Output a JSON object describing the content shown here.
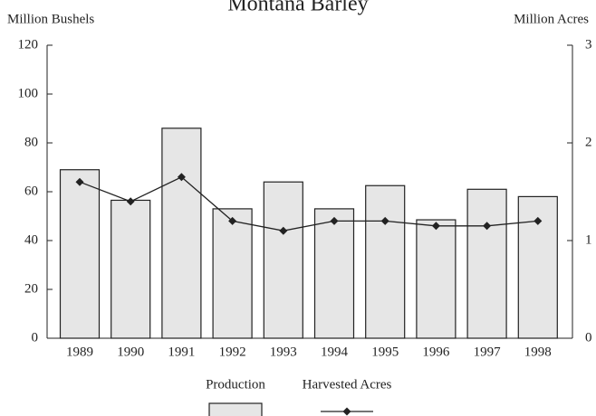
{
  "chart_data": {
    "type": "bar",
    "title": "Montana Barley",
    "y_label": "Million Bushels",
    "y2_label": "Million Acres",
    "categories": [
      "1989",
      "1990",
      "1991",
      "1992",
      "1993",
      "1994",
      "1995",
      "1996",
      "1997",
      "1998"
    ],
    "series": [
      {
        "name": "Production",
        "type": "bar",
        "color": "#e6e6e6",
        "values": [
          69,
          56.5,
          86,
          53,
          64,
          53,
          62.5,
          48.5,
          61,
          58
        ]
      },
      {
        "name": "Harvested Acres",
        "type": "line",
        "axis": "y2",
        "color": "#222222",
        "values": [
          1.6,
          1.4,
          1.65,
          1.2,
          1.1,
          1.2,
          1.2,
          1.15,
          1.15,
          1.2
        ]
      }
    ],
    "ylim": [
      0,
      120
    ],
    "yticks": [
      0,
      20,
      40,
      60,
      80,
      100,
      120
    ],
    "y2lim": [
      0,
      3
    ],
    "y2ticks": [
      0,
      1,
      2,
      3
    ]
  }
}
